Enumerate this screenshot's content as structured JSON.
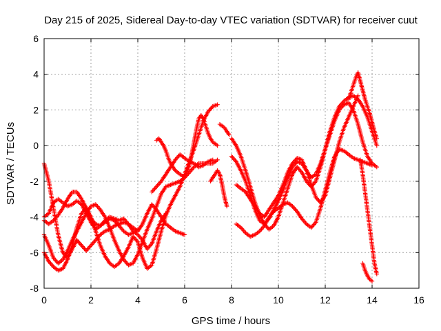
{
  "chart_data": {
    "type": "scatter",
    "title": "Day 215 of 2025, Sidereal Day-to-day VTEC variation (SDTVAR) for receiver cuut",
    "xlabel": "GPS time / hours",
    "ylabel": "SDTVAR / TECUs",
    "xlim": [
      0,
      16
    ],
    "ylim": [
      -8,
      6
    ],
    "xticks": [
      "0",
      "2",
      "4",
      "6",
      "8",
      "10",
      "12",
      "14",
      "16"
    ],
    "yticks": [
      "-8",
      "-6",
      "-4",
      "-2",
      "0",
      "2",
      "4",
      "6"
    ],
    "grid": true,
    "marker": "+",
    "color": "#ff0000",
    "series": [
      {
        "x": [
          0,
          0.2,
          0.4,
          0.6,
          0.8,
          1.0,
          1.2,
          1.4,
          1.6,
          1.8,
          2.0,
          2.2,
          2.4,
          2.6,
          2.8,
          3.0,
          3.2,
          3.4,
          3.6,
          3.8,
          4.0,
          4.2,
          4.4,
          4.6,
          4.8,
          5.0,
          5.2,
          5.4,
          5.6,
          5.8,
          6.0
        ],
        "y": [
          -1.0,
          -2.0,
          -3.5,
          -5.0,
          -6.0,
          -6.3,
          -5.8,
          -5.3,
          -5.6,
          -5.9,
          -5.6,
          -5.3,
          -5.0,
          -4.8,
          -4.7,
          -4.5,
          -4.4,
          -4.3,
          -4.4,
          -4.6,
          -4.8,
          -4.4,
          -3.8,
          -3.3,
          -3.6,
          -4.0,
          -4.4,
          -4.6,
          -4.8,
          -4.9,
          -5.0
        ]
      },
      {
        "x": [
          0,
          0.2,
          0.4,
          0.6,
          0.8,
          1.0,
          1.2,
          1.4,
          1.6,
          1.8,
          2.0,
          2.2,
          2.4,
          2.6,
          2.8,
          3.0,
          3.2,
          3.4,
          3.6,
          3.8,
          4.0,
          4.2,
          4.4,
          4.6,
          4.8,
          5.0,
          5.2
        ],
        "y": [
          -4.0,
          -3.8,
          -3.2,
          -3.0,
          -3.2,
          -3.4,
          -3.3,
          -3.1,
          -3.3,
          -3.8,
          -4.3,
          -4.7,
          -4.5,
          -4.2,
          -4.0,
          -4.1,
          -4.2,
          -4.1,
          -4.4,
          -4.8,
          -5.0,
          -5.3,
          -5.8,
          -5.5,
          -4.8,
          -4.2,
          -3.8
        ]
      },
      {
        "x": [
          0,
          0.2,
          0.4,
          0.6,
          0.8,
          1.0,
          1.2,
          1.4,
          1.6,
          1.8,
          2.0,
          2.2,
          2.4,
          2.6,
          2.8,
          3.0,
          3.2,
          3.4,
          3.6,
          3.8,
          4.0,
          4.2,
          4.4,
          4.6,
          4.8,
          5.0,
          5.2,
          5.4,
          5.6,
          5.8,
          6.0,
          6.2,
          6.4,
          6.6,
          6.8,
          7.0,
          7.2,
          7.4
        ],
        "y": [
          -6.0,
          -6.5,
          -6.8,
          -7.0,
          -6.9,
          -6.4,
          -5.6,
          -4.6,
          -3.8,
          -3.5,
          -4.0,
          -4.8,
          -5.6,
          -6.2,
          -6.6,
          -6.8,
          -6.6,
          -6.2,
          -5.7,
          -5.1,
          -5.4,
          -6.3,
          -6.9,
          -6.7,
          -5.8,
          -4.8,
          -3.9,
          -3.3,
          -2.8,
          -2.3,
          -1.6,
          -0.9,
          -0.2,
          0.6,
          1.4,
          1.9,
          2.2,
          2.3
        ]
      },
      {
        "x": [
          0,
          0.2,
          0.4,
          0.6,
          0.8,
          1.0,
          1.2,
          1.4,
          1.6,
          1.8,
          2.0,
          2.2,
          2.4,
          2.6,
          2.8,
          3.0,
          3.2,
          3.4,
          3.6,
          3.8,
          4.0,
          4.2,
          4.4,
          4.6,
          4.8,
          5.0,
          5.2,
          5.4,
          5.6,
          5.8,
          6.0,
          6.2,
          6.4,
          6.6,
          6.8,
          7.0,
          7.2,
          7.4
        ],
        "y": [
          -5.0,
          -5.6,
          -6.3,
          -6.6,
          -6.4,
          -5.9,
          -5.3,
          -4.8,
          -4.3,
          -3.8,
          -3.4,
          -3.3,
          -3.6,
          -4.0,
          -4.6,
          -5.3,
          -5.9,
          -6.4,
          -6.7,
          -6.6,
          -6.1,
          -5.4,
          -4.7,
          -4.1,
          -3.4,
          -2.7,
          -2.3,
          -2.2,
          -2.1,
          -2.0,
          -1.8,
          -1.5,
          -1.2,
          -1.0,
          -1.0,
          -1.0,
          -1.0,
          -0.8
        ]
      },
      {
        "x": [
          0,
          0.2,
          0.4,
          0.6,
          0.8,
          1.0,
          1.2,
          1.4,
          1.6,
          1.8,
          2.0,
          2.2,
          2.4,
          2.6,
          2.8,
          3.0,
          3.2,
          3.4,
          3.6,
          3.8,
          4.0
        ],
        "y": [
          -4.2,
          -4.4,
          -4.2,
          -3.9,
          -3.5,
          -3.0,
          -2.6,
          -2.6,
          -3.0,
          -3.5,
          -4.1,
          -4.4,
          -4.5,
          -4.3,
          -4.1,
          -4.2,
          -4.5,
          -4.8,
          -5.0,
          -4.9,
          -4.7
        ]
      },
      {
        "x": [
          4.6,
          4.8,
          5.0,
          5.2,
          5.4,
          5.6,
          5.8,
          6.0,
          6.2,
          6.4,
          6.6,
          6.8,
          7.0,
          7.2
        ],
        "y": [
          -2.6,
          -2.3,
          -2.0,
          -1.6,
          -1.2,
          -0.8,
          -0.5,
          -0.7,
          -0.9,
          -1.0,
          -1.2,
          -1.1,
          -0.9,
          -0.8
        ]
      },
      {
        "x": [
          4.8,
          4.9,
          5.0,
          5.1,
          5.2,
          5.3,
          5.4,
          5.5,
          5.6,
          5.7,
          5.8,
          5.9,
          6.0,
          6.1,
          6.2,
          6.3,
          6.4,
          6.5,
          6.6,
          6.7,
          6.8,
          6.9,
          7.0,
          7.1,
          7.2,
          7.3,
          7.4
        ],
        "y": [
          0.3,
          0.4,
          0.2,
          0.0,
          -0.3,
          -0.7,
          -1.0,
          -1.2,
          -1.4,
          -1.5,
          -1.6,
          -1.7,
          -1.7,
          -1.5,
          -1.1,
          -0.5,
          0.2,
          0.9,
          1.5,
          1.7,
          1.5,
          1.1,
          0.7,
          0.4,
          0.2,
          0.1,
          0.0
        ]
      },
      {
        "x": [
          7.1,
          7.2,
          7.3,
          7.4,
          7.5,
          7.6,
          7.7,
          7.8
        ],
        "y": [
          -2.0,
          -1.8,
          -1.6,
          -1.4,
          -1.6,
          -2.2,
          -2.9,
          -3.4
        ]
      },
      {
        "x": [
          7.5,
          7.6,
          7.7,
          7.8,
          7.9
        ],
        "y": [
          1.2,
          1.1,
          1.0,
          0.8,
          0.6
        ]
      },
      {
        "x": [
          8.0,
          8.2,
          8.4,
          8.6,
          8.8,
          9.0,
          9.2,
          9.4,
          9.6,
          9.8,
          10.0,
          10.2,
          10.4,
          10.6,
          10.8,
          11.0,
          11.2,
          11.4,
          11.6,
          11.8,
          12.0,
          12.2,
          12.4,
          12.6,
          12.8,
          13.0,
          13.2,
          13.4,
          13.6,
          13.8,
          14.0,
          14.2
        ],
        "y": [
          0.4,
          0.0,
          -0.6,
          -1.4,
          -2.3,
          -3.2,
          -3.9,
          -4.4,
          -4.7,
          -4.5,
          -4.0,
          -3.2,
          -2.4,
          -1.6,
          -1.2,
          -1.5,
          -2.0,
          -2.3,
          -2.0,
          -1.2,
          -0.2,
          0.8,
          1.6,
          2.2,
          2.5,
          2.7,
          2.8,
          2.6,
          2.2,
          1.6,
          0.8,
          0.0
        ]
      },
      {
        "x": [
          8.0,
          8.2,
          8.4,
          8.6,
          8.8,
          9.0,
          9.2,
          9.4,
          9.6,
          9.8,
          10.0,
          10.2,
          10.4,
          10.6,
          10.8,
          11.0,
          11.2,
          11.4,
          11.6,
          11.8,
          12.0,
          12.2,
          12.4,
          12.6,
          12.8,
          13.0,
          13.2,
          13.4,
          13.6,
          13.8,
          14.0,
          14.2
        ],
        "y": [
          -0.6,
          -0.9,
          -1.4,
          -2.0,
          -2.8,
          -3.6,
          -4.2,
          -4.4,
          -4.1,
          -3.6,
          -3.1,
          -2.5,
          -1.8,
          -1.2,
          -0.9,
          -1.0,
          -1.4,
          -1.8,
          -1.6,
          -1.0,
          -0.2,
          0.6,
          1.4,
          2.0,
          2.3,
          2.4,
          2.0,
          1.2,
          0.2,
          -0.6,
          -1.0,
          -1.2
        ]
      },
      {
        "x": [
          8.2,
          8.4,
          8.6,
          8.8,
          9.0,
          9.2,
          9.4,
          9.6,
          9.8,
          10.0,
          10.2,
          10.4,
          10.6,
          10.8,
          11.0,
          11.2,
          11.4,
          11.6,
          11.8,
          12.0,
          12.2,
          12.4,
          12.6,
          12.8,
          13.0,
          13.2,
          13.4
        ],
        "y": [
          -2.2,
          -2.4,
          -2.6,
          -3.0,
          -3.4,
          -3.8,
          -4.0,
          -3.6,
          -3.2,
          -2.8,
          -2.2,
          -1.5,
          -1.0,
          -0.7,
          -0.8,
          -1.4,
          -2.2,
          -2.9,
          -3.2,
          -2.8,
          -1.8,
          -0.8,
          0.2,
          1.0,
          1.6,
          2.2,
          2.8
        ]
      },
      {
        "x": [
          8.2,
          8.4,
          8.6,
          8.8,
          9.0,
          9.2,
          9.4,
          9.6,
          9.8,
          10.0,
          10.2,
          10.4,
          10.6,
          10.8,
          11.0,
          11.2,
          11.4,
          11.6,
          11.8,
          12.0,
          12.2,
          12.4,
          12.6,
          12.8,
          13.0,
          13.2,
          13.4,
          13.6,
          13.8,
          14.0
        ],
        "y": [
          -4.4,
          -4.6,
          -4.9,
          -5.1,
          -5.0,
          -4.8,
          -4.5,
          -4.0,
          -3.7,
          -3.5,
          -3.3,
          -3.2,
          -3.4,
          -3.7,
          -4.1,
          -4.4,
          -4.6,
          -4.3,
          -3.5,
          -2.5,
          -1.5,
          -0.6,
          -0.2,
          -0.3,
          -0.5,
          -0.7,
          -0.8,
          -0.9,
          -1.0,
          -1.1
        ]
      },
      {
        "x": [
          13.0,
          13.1,
          13.2,
          13.3,
          13.4,
          13.5,
          13.6,
          13.7,
          13.8,
          13.9,
          14.0,
          14.1,
          14.2
        ],
        "y": [
          2.6,
          3.0,
          3.4,
          3.8,
          4.1,
          3.6,
          3.1,
          2.6,
          2.2,
          1.8,
          1.3,
          0.8,
          0.4
        ]
      },
      {
        "x": [
          13.5,
          13.6,
          13.7,
          13.8,
          13.9,
          14.0,
          14.1,
          14.2
        ],
        "y": [
          -0.8,
          -1.6,
          -2.6,
          -3.6,
          -4.6,
          -5.6,
          -6.6,
          -7.2
        ]
      },
      {
        "x": [
          13.6,
          13.7,
          13.8,
          13.9,
          14.0
        ],
        "y": [
          -6.6,
          -7.0,
          -7.3,
          -7.5,
          -7.6
        ]
      }
    ]
  }
}
